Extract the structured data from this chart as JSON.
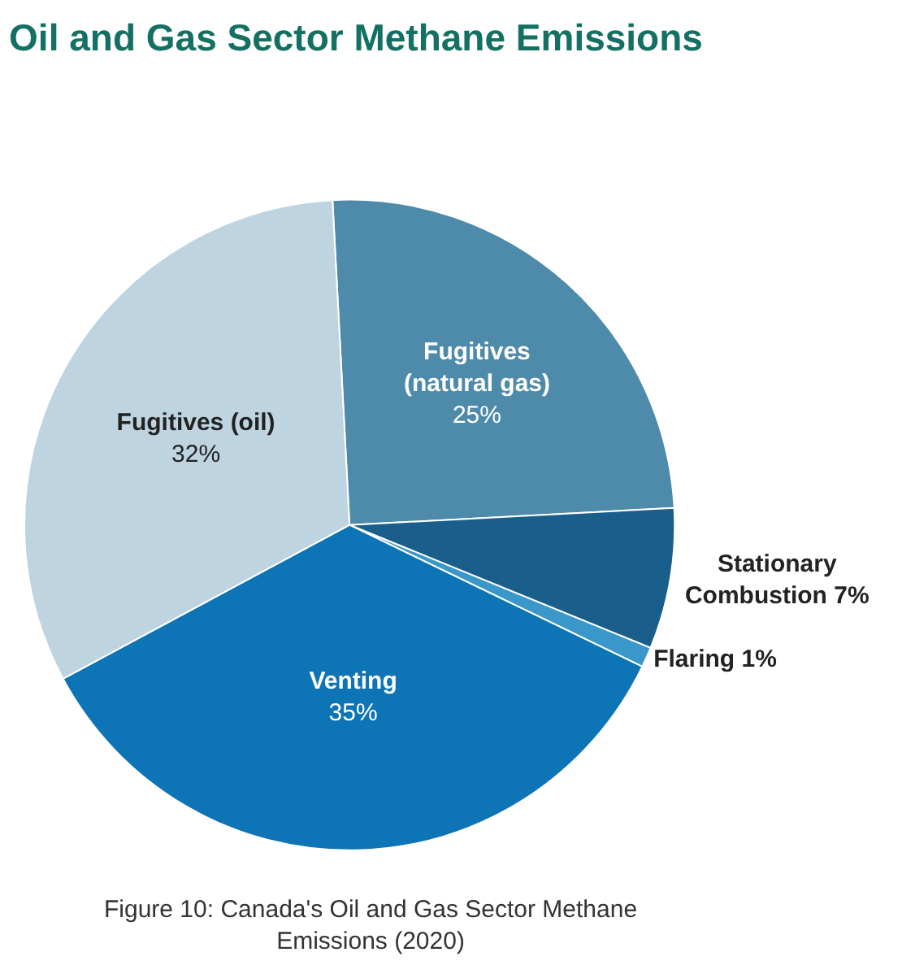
{
  "chart_data": {
    "type": "pie",
    "title": "Oil and Gas Sector Methane Emissions",
    "categories": [
      "Fugitives (natural gas)",
      "Stationary Combustion",
      "Flaring",
      "Venting",
      "Fugitives (oil)"
    ],
    "values": [
      25,
      7,
      1,
      35,
      32
    ],
    "value_labels": [
      "25%",
      "7%",
      "1%",
      "35%",
      "32%"
    ],
    "colors": [
      "#4e8aaa",
      "#1a5e8c",
      "#3a97c9",
      "#0d74b5",
      "#bed5e1"
    ],
    "legend": false,
    "annotations": [
      "Figure 10: Canada's Oil and Gas Sector Methane Emissions (2020)"
    ]
  }
}
